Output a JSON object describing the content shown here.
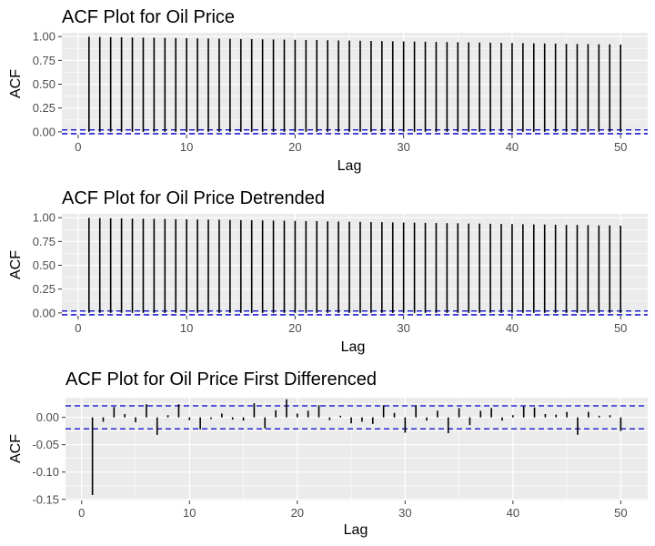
{
  "colors": {
    "panel_bg": "#EBEBEB",
    "grid": "#FFFFFF",
    "bar": "#000000",
    "ci_line": "#0000CC",
    "tick_text": "#4D4D4D"
  },
  "chart_data": [
    {
      "type": "bar",
      "title": "ACF Plot for Oil Price",
      "xlabel": "Lag",
      "ylabel": "ACF",
      "xlim": [
        -1.5,
        52.5
      ],
      "ylim": [
        -0.03,
        1.04
      ],
      "xticks": [
        0,
        10,
        20,
        30,
        40,
        50
      ],
      "yticks": [
        0,
        0.25,
        0.5,
        0.75,
        1
      ],
      "ytick_labels": [
        "0.00",
        "0.25",
        "0.50",
        "0.75",
        "1.00"
      ],
      "grid": true,
      "ci": 0.02,
      "lags": [
        1,
        2,
        3,
        4,
        5,
        6,
        7,
        8,
        9,
        10,
        11,
        12,
        13,
        14,
        15,
        16,
        17,
        18,
        19,
        20,
        21,
        22,
        23,
        24,
        25,
        26,
        27,
        28,
        29,
        30,
        31,
        32,
        33,
        34,
        35,
        36,
        37,
        38,
        39,
        40,
        41,
        42,
        43,
        44,
        45,
        46,
        47,
        48,
        49,
        50
      ],
      "values": [
        0.998,
        0.996,
        0.994,
        0.993,
        0.991,
        0.989,
        0.988,
        0.986,
        0.984,
        0.983,
        0.981,
        0.979,
        0.978,
        0.976,
        0.974,
        0.973,
        0.971,
        0.969,
        0.968,
        0.966,
        0.964,
        0.963,
        0.961,
        0.959,
        0.958,
        0.956,
        0.954,
        0.953,
        0.951,
        0.949,
        0.948,
        0.946,
        0.944,
        0.943,
        0.941,
        0.939,
        0.938,
        0.936,
        0.934,
        0.933,
        0.931,
        0.929,
        0.928,
        0.926,
        0.924,
        0.923,
        0.921,
        0.919,
        0.918,
        0.916
      ]
    },
    {
      "type": "bar",
      "title": "ACF Plot for Oil Price Detrended",
      "xlabel": "Lag",
      "ylabel": "ACF",
      "xlim": [
        -1.5,
        52.5
      ],
      "ylim": [
        -0.03,
        1.04
      ],
      "xticks": [
        0,
        10,
        20,
        30,
        40,
        50
      ],
      "yticks": [
        0,
        0.25,
        0.5,
        0.75,
        1
      ],
      "ytick_labels": [
        "0.00",
        "0.25",
        "0.50",
        "0.75",
        "1.00"
      ],
      "grid": true,
      "ci": 0.02,
      "lags": [
        1,
        2,
        3,
        4,
        5,
        6,
        7,
        8,
        9,
        10,
        11,
        12,
        13,
        14,
        15,
        16,
        17,
        18,
        19,
        20,
        21,
        22,
        23,
        24,
        25,
        26,
        27,
        28,
        29,
        30,
        31,
        32,
        33,
        34,
        35,
        36,
        37,
        38,
        39,
        40,
        41,
        42,
        43,
        44,
        45,
        46,
        47,
        48,
        49,
        50
      ],
      "values": [
        0.998,
        0.996,
        0.994,
        0.993,
        0.991,
        0.989,
        0.988,
        0.986,
        0.984,
        0.983,
        0.981,
        0.979,
        0.978,
        0.976,
        0.974,
        0.973,
        0.971,
        0.969,
        0.968,
        0.966,
        0.964,
        0.963,
        0.961,
        0.959,
        0.958,
        0.956,
        0.954,
        0.953,
        0.951,
        0.949,
        0.948,
        0.946,
        0.944,
        0.943,
        0.941,
        0.939,
        0.938,
        0.936,
        0.934,
        0.933,
        0.931,
        0.929,
        0.928,
        0.926,
        0.924,
        0.923,
        0.921,
        0.919,
        0.918,
        0.916
      ]
    },
    {
      "type": "bar",
      "title": "ACF Plot for Oil Price First Differenced",
      "xlabel": "Lag",
      "ylabel": "ACF",
      "xlim": [
        -1.5,
        52.5
      ],
      "ylim": [
        -0.152,
        0.036
      ],
      "xticks": [
        0,
        10,
        20,
        30,
        40,
        50
      ],
      "yticks": [
        -0.15,
        -0.1,
        -0.05,
        0,
        0.05
      ],
      "ytick_labels": [
        "-0.15",
        "-0.10",
        "-0.05",
        "0.00",
        ""
      ],
      "grid": true,
      "ci": 0.021,
      "lags": [
        1,
        2,
        3,
        4,
        5,
        6,
        7,
        8,
        9,
        10,
        11,
        12,
        13,
        14,
        15,
        16,
        17,
        18,
        19,
        20,
        21,
        22,
        23,
        24,
        25,
        26,
        27,
        28,
        29,
        30,
        31,
        32,
        33,
        34,
        35,
        36,
        37,
        38,
        39,
        40,
        41,
        42,
        43,
        44,
        45,
        46,
        47,
        48,
        49,
        50
      ],
      "values": [
        -0.142,
        -0.008,
        0.019,
        0.006,
        -0.009,
        0.024,
        -0.032,
        0.004,
        0.024,
        -0.005,
        -0.022,
        -0.003,
        0.007,
        -0.004,
        -0.006,
        0.026,
        -0.02,
        0.013,
        0.033,
        0.007,
        0.012,
        0.022,
        -0.005,
        0.003,
        -0.011,
        -0.008,
        -0.012,
        0.022,
        0.008,
        -0.028,
        0.022,
        -0.006,
        0.012,
        -0.029,
        0.017,
        -0.014,
        0.012,
        0.017,
        -0.006,
        0.004,
        0.02,
        0.018,
        0.006,
        0.005,
        0.01,
        -0.032,
        0.01,
        0.003,
        0.004,
        -0.025
      ]
    }
  ]
}
